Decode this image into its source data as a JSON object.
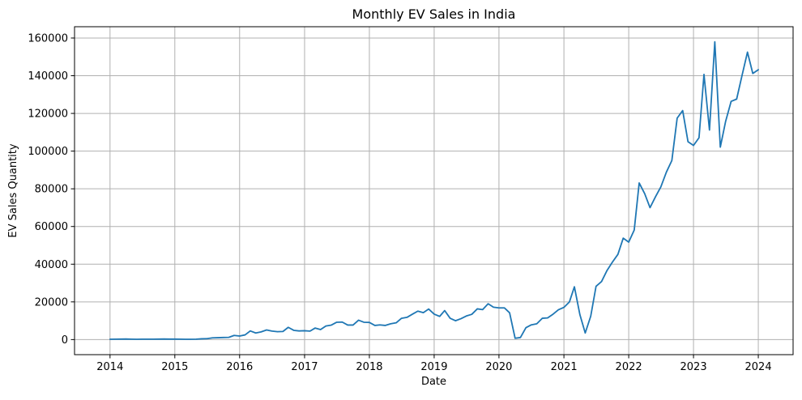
{
  "chart_data": {
    "type": "line",
    "title": "Monthly EV Sales in India",
    "xlabel": "Date",
    "ylabel": "EV Sales Quantity",
    "xlim": [
      "2013-06-15",
      "2024-07-15"
    ],
    "ylim": [
      -8000,
      166000
    ],
    "grid": true,
    "x_ticks": [
      "2014",
      "2015",
      "2016",
      "2017",
      "2018",
      "2019",
      "2020",
      "2021",
      "2022",
      "2023",
      "2024"
    ],
    "y_ticks": [
      0,
      20000,
      40000,
      60000,
      80000,
      100000,
      120000,
      140000,
      160000
    ],
    "line_color": "#1f77b4",
    "series": [
      {
        "name": "",
        "x": [
          "2014-01",
          "2014-02",
          "2014-03",
          "2014-04",
          "2014-05",
          "2014-06",
          "2014-07",
          "2014-08",
          "2014-09",
          "2014-10",
          "2014-11",
          "2014-12",
          "2015-01",
          "2015-02",
          "2015-03",
          "2015-04",
          "2015-05",
          "2015-06",
          "2015-07",
          "2015-08",
          "2015-09",
          "2015-10",
          "2015-11",
          "2015-12",
          "2016-01",
          "2016-02",
          "2016-03",
          "2016-04",
          "2016-05",
          "2016-06",
          "2016-07",
          "2016-08",
          "2016-09",
          "2016-10",
          "2016-11",
          "2016-12",
          "2017-01",
          "2017-02",
          "2017-03",
          "2017-04",
          "2017-05",
          "2017-06",
          "2017-07",
          "2017-08",
          "2017-09",
          "2017-10",
          "2017-11",
          "2017-12",
          "2018-01",
          "2018-02",
          "2018-03",
          "2018-04",
          "2018-05",
          "2018-06",
          "2018-07",
          "2018-08",
          "2018-09",
          "2018-10",
          "2018-11",
          "2018-12",
          "2019-01",
          "2019-02",
          "2019-03",
          "2019-04",
          "2019-05",
          "2019-06",
          "2019-07",
          "2019-08",
          "2019-09",
          "2019-10",
          "2019-11",
          "2019-12",
          "2020-01",
          "2020-02",
          "2020-03",
          "2020-04",
          "2020-05",
          "2020-06",
          "2020-07",
          "2020-08",
          "2020-09",
          "2020-10",
          "2020-11",
          "2020-12",
          "2021-01",
          "2021-02",
          "2021-03",
          "2021-04",
          "2021-05",
          "2021-06",
          "2021-07",
          "2021-08",
          "2021-09",
          "2021-10",
          "2021-11",
          "2021-12",
          "2022-01",
          "2022-02",
          "2022-03",
          "2022-04",
          "2022-05",
          "2022-06",
          "2022-07",
          "2022-08",
          "2022-09",
          "2022-10",
          "2022-11",
          "2022-12",
          "2023-01",
          "2023-02",
          "2023-03",
          "2023-04",
          "2023-05",
          "2023-06",
          "2023-07",
          "2023-08",
          "2023-09",
          "2023-10",
          "2023-11",
          "2023-12",
          "2024-01"
        ],
        "values": [
          150,
          200,
          250,
          300,
          200,
          150,
          200,
          200,
          200,
          250,
          300,
          250,
          250,
          200,
          150,
          150,
          200,
          400,
          500,
          900,
          1000,
          1100,
          1200,
          2200,
          1900,
          2500,
          4600,
          3500,
          4100,
          5100,
          4500,
          4200,
          4300,
          6500,
          4900,
          4600,
          4700,
          4500,
          6100,
          5300,
          7200,
          7700,
          9200,
          9300,
          7700,
          7700,
          10300,
          9200,
          9100,
          7500,
          7800,
          7500,
          8400,
          8900,
          11300,
          11800,
          13500,
          15100,
          14300,
          16200,
          13500,
          12300,
          15400,
          11300,
          10000,
          11100,
          12500,
          13400,
          16300,
          15900,
          19000,
          17200,
          16800,
          16800,
          14200,
          700,
          1100,
          6300,
          7800,
          8400,
          11300,
          11500,
          13500,
          15800,
          17100,
          20000,
          28000,
          13200,
          3500,
          12400,
          28300,
          30800,
          36700,
          41100,
          45200,
          53800,
          51700,
          58100,
          83100,
          77400,
          70000,
          75800,
          81000,
          88800,
          95000,
          117500,
          121500,
          105000,
          103000,
          107100,
          140700,
          111200,
          158000,
          102100,
          115800,
          126400,
          127600,
          140000,
          152500,
          141200,
          143200
        ]
      }
    ]
  }
}
